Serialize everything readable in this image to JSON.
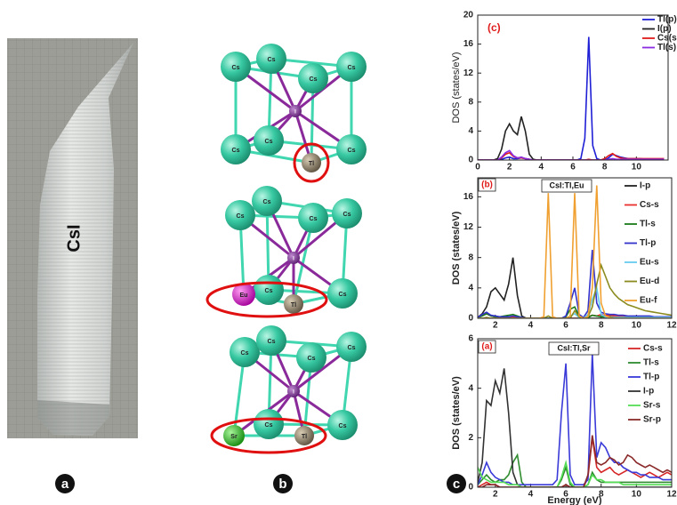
{
  "panel_labels": [
    "a",
    "b",
    "c"
  ],
  "photo": {
    "label": "CsI"
  },
  "structures": [
    [
      "Cs",
      "Cs",
      "Cs",
      "Cs",
      "I",
      "Cs",
      "Cs",
      "Cs",
      "Tl"
    ],
    [
      "Cs",
      "Cs",
      "Cs",
      "Cs",
      "I",
      "Cs",
      "Cs",
      "Eu",
      "Tl"
    ],
    [
      "Cs",
      "Cs",
      "Cs",
      "Cs",
      "I",
      "Cs",
      "Cs",
      "Sr",
      "Tl"
    ]
  ],
  "chart_data": [
    {
      "type": "line",
      "title": "(c)",
      "ylabel": "DOS (states/eV)",
      "xlim": [
        0,
        12
      ],
      "ylim": [
        0,
        20
      ],
      "xticks": [
        0,
        2,
        4,
        6,
        8,
        10
      ],
      "yticks": [
        0,
        4,
        8,
        12,
        16,
        20
      ],
      "legend": "upper right",
      "x": [
        0,
        0.25,
        0.5,
        0.75,
        1,
        1.25,
        1.5,
        1.75,
        2,
        2.25,
        2.5,
        2.75,
        3,
        3.25,
        3.5,
        3.75,
        4,
        4.25,
        4.5,
        4.75,
        5,
        5.25,
        5.5,
        5.75,
        6,
        6.25,
        6.5,
        6.75,
        7,
        7.25,
        7.5,
        7.75,
        8,
        8.25,
        8.5,
        8.75,
        9,
        9.25,
        9.5,
        9.75,
        10,
        10.25,
        10.5,
        10.75,
        11,
        11.25,
        11.5,
        11.75
      ],
      "series": [
        {
          "name": "Tl(p)",
          "color": "#1f1fd6",
          "values": [
            0,
            0,
            0,
            0,
            0,
            0,
            0.1,
            0.3,
            0.4,
            0.2,
            0.2,
            0.3,
            0.2,
            0.1,
            0,
            0,
            0,
            0,
            0,
            0,
            0,
            0,
            0,
            0,
            0,
            0,
            0.2,
            3.0,
            17.0,
            2.0,
            0.2,
            0,
            0,
            0.3,
            0.8,
            0.6,
            0.4,
            0.3,
            0.2,
            0.2,
            0.2,
            0.2,
            0.1,
            0.1,
            0.1,
            0.1,
            0.1,
            0.1
          ]
        },
        {
          "name": "I(p)",
          "color": "#222222",
          "values": [
            0,
            0,
            0,
            0,
            0,
            0.2,
            1.5,
            4.0,
            5.0,
            4.0,
            3.5,
            6.0,
            4.0,
            0.8,
            0.1,
            0,
            0,
            0,
            0,
            0,
            0,
            0,
            0,
            0,
            0,
            0,
            0,
            0,
            0,
            0,
            0,
            0,
            0,
            0,
            0,
            0,
            0,
            0,
            0,
            0,
            0,
            0,
            0,
            0,
            0,
            0,
            0,
            0
          ]
        },
        {
          "name": "Cs(s",
          "color": "#e01b1b",
          "values": [
            0,
            0,
            0,
            0,
            0,
            0,
            0.3,
            0.8,
            1.0,
            0.5,
            0.3,
            0.3,
            0.2,
            0.1,
            0,
            0,
            0,
            0,
            0,
            0,
            0,
            0,
            0,
            0,
            0,
            0,
            0,
            0,
            0.1,
            0,
            0,
            0,
            0.2,
            0.6,
            0.9,
            0.5,
            0.3,
            0.2,
            0.2,
            0.2,
            0.2,
            0.2,
            0.2,
            0.2,
            0.2,
            0.2,
            0.2,
            0.2
          ]
        },
        {
          "name": "Tl(s)",
          "color": "#8a2be2",
          "values": [
            0,
            0,
            0,
            0,
            0,
            0,
            0.4,
            1.0,
            1.3,
            0.6,
            0.3,
            0.4,
            0.2,
            0.1,
            0,
            0,
            0,
            0,
            0,
            0,
            0,
            0,
            0,
            0,
            0,
            0,
            0,
            0,
            0,
            0,
            0,
            0,
            0,
            0.1,
            0.2,
            0.1,
            0.1,
            0.1,
            0.1,
            0.1,
            0.1,
            0.1,
            0.1,
            0.1,
            0.1,
            0.1,
            0.1,
            0.1
          ]
        }
      ]
    },
    {
      "type": "line",
      "title": "(b)",
      "annotation": "CsI:Tl,Eu",
      "ylabel": "DOS (states/eV)",
      "xlim": [
        1,
        12
      ],
      "ylim": [
        0,
        18.5
      ],
      "xticks": [
        2,
        4,
        6,
        8,
        10,
        12
      ],
      "yticks": [
        0,
        4,
        8,
        12,
        16
      ],
      "legend": "upper right",
      "x": [
        1,
        1.25,
        1.5,
        1.75,
        2,
        2.25,
        2.5,
        2.75,
        3,
        3.25,
        3.5,
        3.75,
        4,
        4.25,
        4.5,
        4.75,
        5,
        5.25,
        5.5,
        5.75,
        6,
        6.25,
        6.5,
        6.75,
        7,
        7.25,
        7.5,
        7.75,
        8,
        8.25,
        8.5,
        8.75,
        9,
        9.25,
        9.5,
        9.75,
        10,
        10.25,
        10.5,
        10.75,
        11,
        11.25,
        11.5,
        11.75,
        12
      ],
      "series": [
        {
          "name": "I-p",
          "color": "#222222",
          "values": [
            0.1,
            0.6,
            1.5,
            3.5,
            4.0,
            3.2,
            2.4,
            4.5,
            8.0,
            3.0,
            0.3,
            0,
            0,
            0,
            0,
            0,
            0,
            0,
            0,
            0,
            0,
            0,
            0,
            0,
            0,
            0,
            0,
            0,
            0,
            0,
            0,
            0,
            0,
            0,
            0,
            0,
            0,
            0,
            0,
            0,
            0,
            0,
            0,
            0,
            0
          ]
        },
        {
          "name": "Cs-s",
          "color": "#e8312f",
          "values": [
            0.1,
            0.4,
            0.6,
            0.3,
            0.2,
            0.1,
            0.1,
            0.1,
            0.2,
            0.1,
            0,
            0,
            0,
            0,
            0,
            0,
            0,
            0,
            0,
            0,
            0,
            0,
            0,
            0,
            0,
            0.2,
            0.4,
            0.3,
            0.5,
            0.4,
            0.4,
            0.3,
            0.3,
            0.3,
            0.2,
            0.2,
            0.2,
            0.2,
            0.2,
            0.2,
            0.2,
            0.2,
            0.2,
            0.2,
            0.2
          ]
        },
        {
          "name": "Tl-s",
          "color": "#1a7a1a",
          "values": [
            0.1,
            0.3,
            0.6,
            0.3,
            0.2,
            0.2,
            0.3,
            0.4,
            0.5,
            0.3,
            0.1,
            0,
            0,
            0,
            0,
            0,
            0,
            0,
            0,
            0,
            0.2,
            1.2,
            1.5,
            0.3,
            0,
            0.1,
            0.4,
            0.3,
            0.2,
            0.2,
            0.2,
            0.1,
            0.1,
            0.1,
            0.1,
            0.1,
            0.1,
            0.1,
            0.1,
            0.1,
            0.1,
            0.1,
            0.1,
            0.1,
            0.1
          ]
        },
        {
          "name": "Tl-p",
          "color": "#3333cc",
          "values": [
            0.1,
            0.5,
            0.8,
            0.4,
            0.3,
            0.2,
            0.2,
            0.2,
            0.3,
            0.2,
            0.1,
            0,
            0,
            0,
            0,
            0,
            0,
            0,
            0,
            0,
            0.3,
            2.0,
            4.0,
            0.5,
            0.1,
            1.0,
            9.0,
            2.0,
            0.8,
            0.6,
            0.5,
            0.5,
            0.4,
            0.4,
            0.3,
            0.3,
            0.3,
            0.3,
            0.3,
            0.3,
            0.2,
            0.2,
            0.2,
            0.2,
            0.2
          ]
        },
        {
          "name": "Eu-s",
          "color": "#66ccee",
          "values": [
            0,
            0,
            0.1,
            0,
            0,
            0,
            0,
            0,
            0,
            0,
            0,
            0,
            0,
            0,
            0,
            0,
            0,
            0,
            0,
            0,
            0,
            0.3,
            0.6,
            0.1,
            0,
            0.5,
            2.5,
            4.0,
            0.5,
            0.2,
            0.1,
            0.1,
            0.1,
            0.1,
            0.1,
            0.1,
            0.1,
            0.1,
            0.1,
            0.1,
            0.1,
            0.1,
            0.1,
            0.1,
            0.1
          ]
        },
        {
          "name": "Eu-d",
          "color": "#8b8b20",
          "values": [
            0,
            0,
            0.1,
            0,
            0,
            0,
            0,
            0,
            0,
            0,
            0,
            0,
            0,
            0,
            0,
            0,
            0.3,
            0,
            0,
            0,
            0,
            0,
            1.0,
            0.2,
            0,
            0.2,
            1.5,
            4.5,
            7.0,
            5.5,
            4.0,
            3.2,
            2.6,
            2.2,
            1.8,
            1.6,
            1.4,
            1.2,
            1.0,
            0.9,
            0.8,
            0.7,
            0.6,
            0.5,
            0.4
          ]
        },
        {
          "name": "Eu-f",
          "color": "#f0a030",
          "values": [
            0,
            0,
            0,
            0,
            0,
            0,
            0,
            0,
            0,
            0,
            0,
            0,
            0,
            0,
            0,
            0.2,
            16.5,
            0.2,
            0,
            0,
            0,
            0.3,
            16.5,
            0.3,
            0,
            0.2,
            4.0,
            17.5,
            2.0,
            0.3,
            0.1,
            0,
            0,
            0,
            0,
            0,
            0,
            0,
            0,
            0,
            0,
            0,
            0,
            0,
            0
          ]
        }
      ]
    },
    {
      "type": "line",
      "title": "(a)",
      "annotation": "CsI:Tl,Sr",
      "ylabel": "DOS (states/eV)",
      "xlabel": "Energy (eV)",
      "xlim": [
        1,
        12
      ],
      "ylim": [
        0,
        6
      ],
      "xticks": [
        2,
        4,
        6,
        8,
        10,
        12
      ],
      "yticks": [
        0,
        2,
        4,
        6
      ],
      "legend": "upper right",
      "x": [
        1,
        1.25,
        1.5,
        1.75,
        2,
        2.25,
        2.5,
        2.75,
        3,
        3.25,
        3.5,
        3.75,
        4,
        4.25,
        4.5,
        4.75,
        5,
        5.25,
        5.5,
        5.75,
        6,
        6.25,
        6.5,
        6.75,
        7,
        7.25,
        7.5,
        7.75,
        8,
        8.25,
        8.5,
        8.75,
        9,
        9.25,
        9.5,
        9.75,
        10,
        10.25,
        10.5,
        10.75,
        11,
        11.25,
        11.5,
        11.75,
        12
      ],
      "series": [
        {
          "name": "Cs-s",
          "color": "#d62728",
          "values": [
            0,
            0.1,
            0.2,
            0.1,
            0.1,
            0,
            0,
            0,
            0,
            0,
            0,
            0,
            0,
            0,
            0,
            0,
            0,
            0,
            0,
            0,
            0.1,
            0,
            0,
            0,
            0,
            0.4,
            2.0,
            0.8,
            0.6,
            0.7,
            0.8,
            0.6,
            0.5,
            0.6,
            0.7,
            0.6,
            0.5,
            0.4,
            0.5,
            0.6,
            0.5,
            0.4,
            0.5,
            0.6,
            0.5
          ]
        },
        {
          "name": "Tl-s",
          "color": "#2e8b2e",
          "values": [
            0.1,
            0.3,
            0.5,
            0.3,
            0.2,
            0.3,
            0.3,
            0.5,
            1.0,
            1.3,
            0.2,
            0,
            0,
            0,
            0,
            0,
            0,
            0,
            0,
            0.3,
            0.8,
            0.1,
            0,
            0,
            0,
            0.1,
            0.6,
            0.3,
            0.2,
            0.2,
            0.2,
            0.2,
            0.2,
            0.2,
            0.2,
            0.2,
            0.2,
            0.2,
            0.2,
            0.2,
            0.2,
            0.2,
            0.2,
            0.2,
            0.2
          ]
        },
        {
          "name": "Tl-p",
          "color": "#3a3ad8",
          "values": [
            0.1,
            0.5,
            1.0,
            0.6,
            0.4,
            0.3,
            0.2,
            0.2,
            0.1,
            0.1,
            0.1,
            0.1,
            0.1,
            0.1,
            0.1,
            0.1,
            0.1,
            0.1,
            0.3,
            3.0,
            5.0,
            0.5,
            0.1,
            0.1,
            0.1,
            0.3,
            5.4,
            1.2,
            1.8,
            1.6,
            1.2,
            1.0,
            1.0,
            0.8,
            0.7,
            0.6,
            0.6,
            0.5,
            0.5,
            0.4,
            0.4,
            0.4,
            0.3,
            0.3,
            0.3
          ]
        },
        {
          "name": "I-p",
          "color": "#333333",
          "values": [
            0.2,
            1.0,
            3.5,
            3.3,
            4.3,
            3.8,
            4.8,
            3.0,
            0.6,
            0.1,
            0,
            0,
            0,
            0,
            0,
            0,
            0,
            0,
            0,
            0,
            0,
            0,
            0,
            0,
            0,
            0,
            0,
            0,
            0,
            0,
            0,
            0,
            0,
            0,
            0,
            0,
            0,
            0,
            0,
            0,
            0,
            0,
            0,
            0,
            0
          ]
        },
        {
          "name": "Sr-s",
          "color": "#55dd55",
          "values": [
            0.8,
            0.4,
            0.3,
            0.2,
            0.2,
            0.2,
            0.2,
            0.1,
            0.1,
            0.1,
            0,
            0,
            0,
            0,
            0,
            0,
            0,
            0,
            0,
            0.4,
            1.0,
            0.2,
            0,
            0,
            0,
            0.1,
            0.5,
            0.3,
            0.3,
            0.2,
            0.2,
            0.2,
            0.2,
            0.1,
            0.1,
            0.1,
            0.1,
            0.1,
            0.1,
            0.1,
            0.1,
            0.1,
            0.1,
            0.1,
            0.1
          ]
        },
        {
          "name": "Sr-p",
          "color": "#8b2a2a",
          "values": [
            0,
            0,
            0.1,
            0.1,
            0.1,
            0,
            0,
            0,
            0,
            0,
            0,
            0,
            0,
            0,
            0,
            0,
            0,
            0,
            0,
            0,
            0.1,
            0,
            0,
            0,
            0,
            0.5,
            2.1,
            1.0,
            0.9,
            1.0,
            1.2,
            1.1,
            0.9,
            1.0,
            1.3,
            1.2,
            1.0,
            0.9,
            0.8,
            0.9,
            0.8,
            0.7,
            0.6,
            0.7,
            0.6
          ]
        }
      ]
    }
  ]
}
